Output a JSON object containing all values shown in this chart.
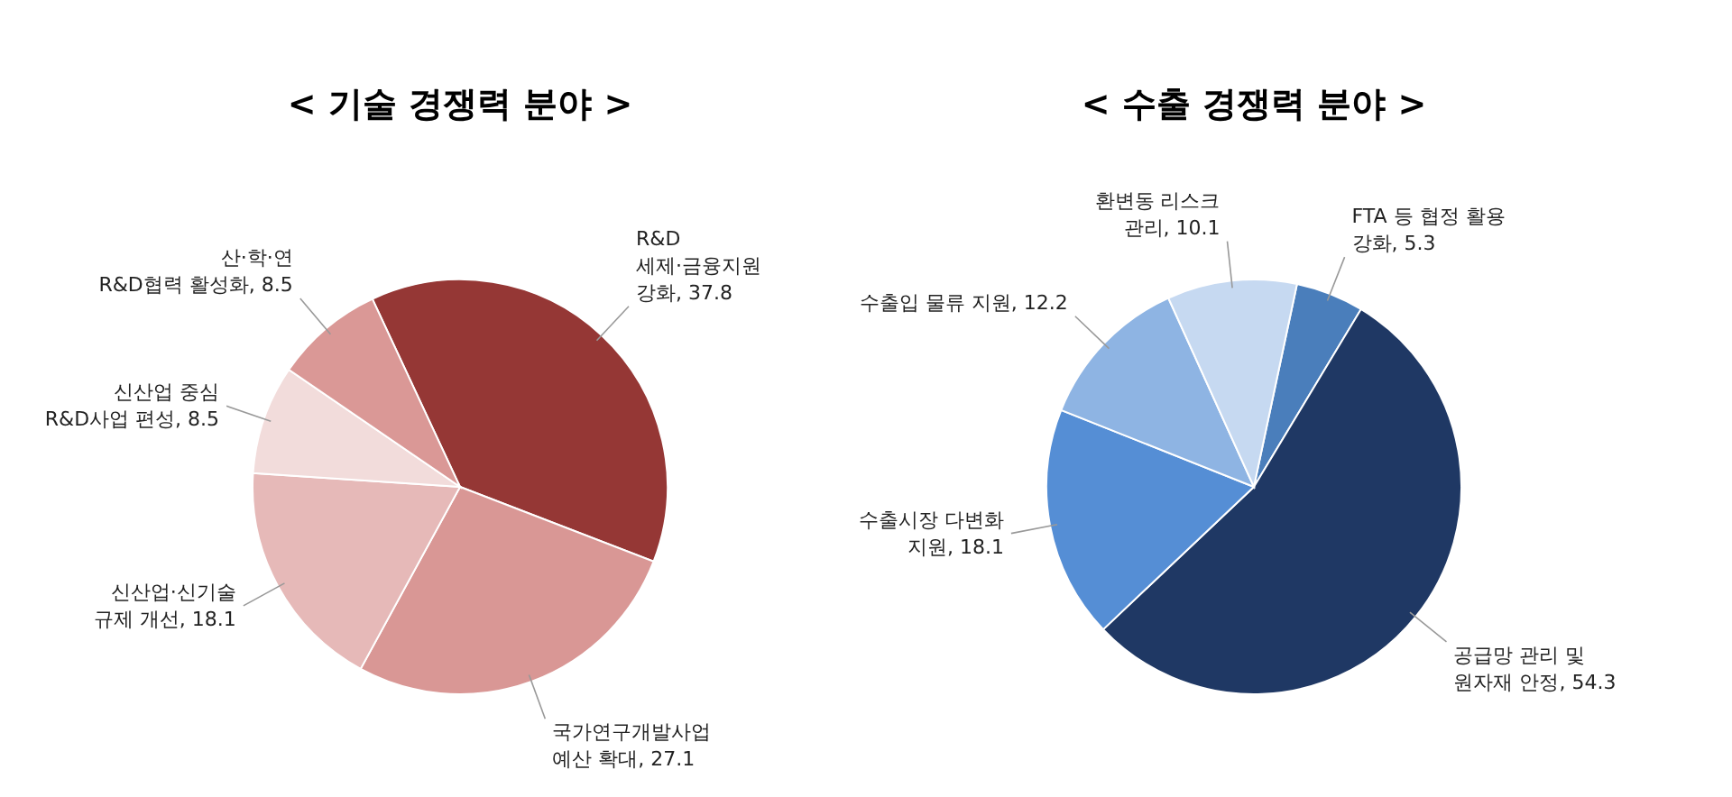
{
  "chart_data": [
    {
      "type": "pie",
      "title": "< 기술 경쟁력 분야 >",
      "categories": [
        "R&D\n세제·금융지원\n강화",
        "국가연구개발사업\n예산 확대",
        "신산업·신기술\n규제 개선",
        "신산업 중심\nR&D사업 편성",
        "산·학·연\nR&D협력 활성화"
      ],
      "values": [
        37.8,
        27.1,
        18.1,
        8.5,
        8.5
      ],
      "value_labels": [
        ", 37.8",
        ", 27.1",
        ", 18.1",
        ", 8.5",
        ", 8.5"
      ],
      "colors": [
        "#953735",
        "#d99795",
        "#e6b9b8",
        "#f2dcdb",
        "#da9896"
      ]
    },
    {
      "type": "pie",
      "title": "< 수출 경쟁력 분야 >",
      "categories": [
        "FTA 등 협정 활용\n강화",
        "공급망 관리 및\n원자재 안정",
        "수출시장 다변화\n지원",
        "수출입 물류 지원",
        "환변동 리스크\n관리"
      ],
      "values": [
        5.3,
        54.3,
        18.1,
        12.2,
        10.1
      ],
      "value_labels": [
        ", 5.3",
        ", 54.3",
        ", 18.1",
        ", 12.2",
        ", 10.1"
      ],
      "colors": [
        "#4a7ebb",
        "#1f3864",
        "#558ed5",
        "#8eb4e3",
        "#c6d9f1"
      ]
    }
  ]
}
